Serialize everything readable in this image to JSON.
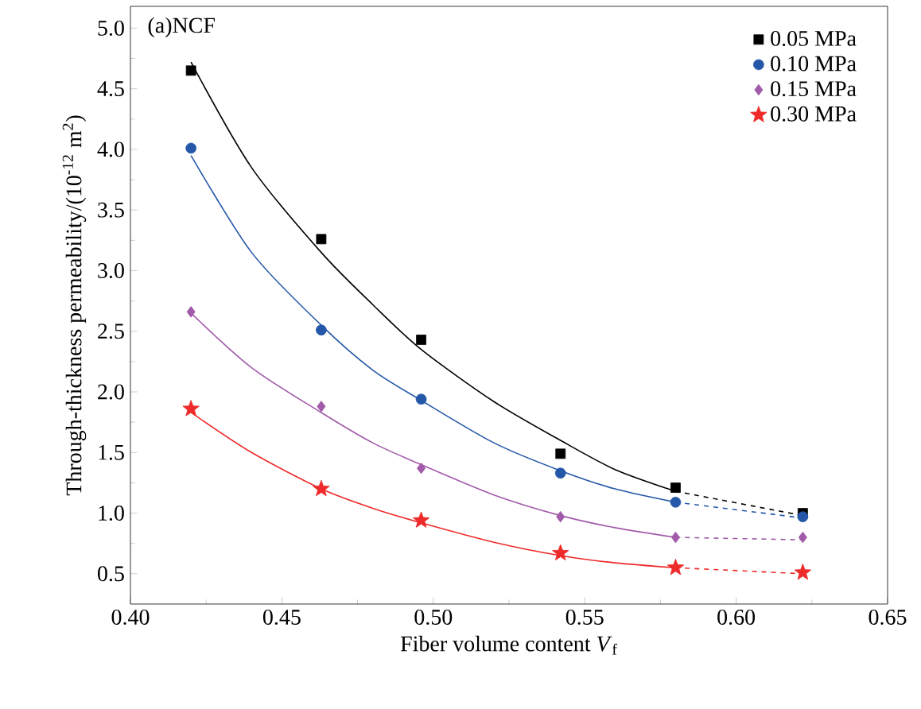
{
  "chart_data": {
    "type": "scatter",
    "xlabel": "Fiber volume content *V*$_{f}$",
    "ylabel": "Through-thickness permeability/(10$^{-12}$ m$^{2}$)",
    "annotations": [
      "(a)NCF"
    ],
    "x": [
      0.42,
      0.463,
      0.496,
      0.542,
      0.58,
      0.622
    ],
    "xlim": [
      0.4,
      0.65
    ],
    "xticks": [
      {
        "value": 0.4,
        "label": "0.40"
      },
      {
        "value": 0.45,
        "label": "0.45"
      },
      {
        "value": 0.5,
        "label": "0.50"
      },
      {
        "value": 0.55,
        "label": "0.55"
      },
      {
        "value": 0.6,
        "label": "0.60"
      },
      {
        "value": 0.65,
        "label": "0.65"
      }
    ],
    "ylim": [
      0.25,
      5.18
    ],
    "yticks": [
      {
        "value": 0.5,
        "label": "0.5"
      },
      {
        "value": 1,
        "label": "1.0"
      },
      {
        "value": 1.5,
        "label": "1.5"
      },
      {
        "value": 2,
        "label": "2.0"
      },
      {
        "value": 2.5,
        "label": "2.5"
      },
      {
        "value": 3,
        "label": "3.0"
      },
      {
        "value": 3.5,
        "label": "3.5"
      },
      {
        "value": 4,
        "label": "4.0"
      },
      {
        "value": 4.5,
        "label": "4.5"
      },
      {
        "value": 5,
        "label": "5.0"
      }
    ],
    "legend": "top right",
    "grid": false,
    "series": [
      {
        "name": "0.05 MPa",
        "color": "#000000",
        "marker": "square",
        "values": [
          4.65,
          3.26,
          2.43,
          1.49,
          1.21,
          1.0
        ]
      },
      {
        "name": "0.10 MPa",
        "color": "#2457a8",
        "marker": "circle",
        "values": [
          4.01,
          2.51,
          1.94,
          1.33,
          1.09,
          0.97
        ]
      },
      {
        "name": "0.15 MPa",
        "color": "#a25aaa",
        "marker": "diamond",
        "values": [
          2.66,
          1.88,
          1.37,
          0.97,
          0.8,
          0.8
        ]
      },
      {
        "name": "0.30 MPa",
        "color": "#ee2a2a",
        "marker": "star",
        "values": [
          1.86,
          1.2,
          0.94,
          0.67,
          0.55,
          0.51
        ]
      },
      {
        "type": "line",
        "color": "#000000",
        "line_style": "solid",
        "x": [
          0.42,
          0.44,
          0.463,
          0.48,
          0.496,
          0.52,
          0.542,
          0.56,
          0.58
        ],
        "values": [
          4.72,
          3.85,
          3.15,
          2.72,
          2.35,
          1.92,
          1.6,
          1.36,
          1.18
        ]
      },
      {
        "type": "line",
        "color": "#2457a8",
        "line_style": "solid",
        "x": [
          0.42,
          0.44,
          0.463,
          0.48,
          0.496,
          0.52,
          0.542,
          0.56,
          0.58
        ],
        "values": [
          3.95,
          3.15,
          2.55,
          2.18,
          1.93,
          1.58,
          1.35,
          1.2,
          1.09
        ]
      },
      {
        "type": "line",
        "color": "#a25aaa",
        "line_style": "solid",
        "x": [
          0.42,
          0.44,
          0.463,
          0.48,
          0.496,
          0.52,
          0.542,
          0.56,
          0.58
        ],
        "values": [
          2.65,
          2.2,
          1.83,
          1.58,
          1.4,
          1.15,
          0.98,
          0.88,
          0.8
        ]
      },
      {
        "type": "line",
        "color": "#ee2a2a",
        "line_style": "solid",
        "x": [
          0.42,
          0.44,
          0.463,
          0.48,
          0.496,
          0.52,
          0.542,
          0.56,
          0.58
        ],
        "values": [
          1.83,
          1.5,
          1.2,
          1.04,
          0.92,
          0.76,
          0.65,
          0.59,
          0.55
        ]
      },
      {
        "type": "line",
        "color": "#000000",
        "line_style": "dashed",
        "x": [
          0.58,
          0.622
        ],
        "values": [
          1.18,
          0.98
        ]
      },
      {
        "type": "line",
        "color": "#2457a8",
        "line_style": "dashed",
        "x": [
          0.58,
          0.622
        ],
        "values": [
          1.09,
          0.96
        ]
      },
      {
        "type": "line",
        "color": "#a25aaa",
        "line_style": "dashed",
        "x": [
          0.58,
          0.622
        ],
        "values": [
          0.8,
          0.78
        ]
      },
      {
        "type": "line",
        "color": "#ee2a2a",
        "line_style": "dashed",
        "x": [
          0.58,
          0.622
        ],
        "values": [
          0.55,
          0.5
        ]
      }
    ]
  }
}
